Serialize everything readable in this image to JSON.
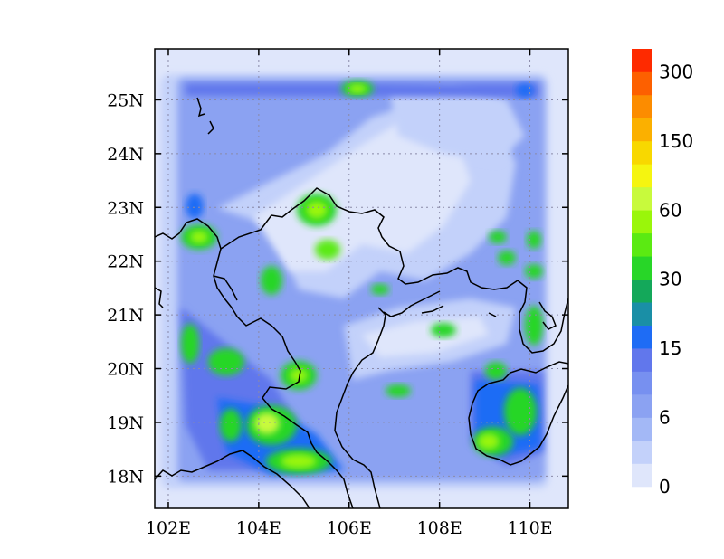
{
  "map": {
    "lon_range": [
      101.7,
      110.85
    ],
    "lat_range": [
      17.4,
      25.95
    ],
    "lon_ticks": [
      {
        "value": 102,
        "label": "102E"
      },
      {
        "value": 104,
        "label": "104E"
      },
      {
        "value": 106,
        "label": "106E"
      },
      {
        "value": 108,
        "label": "108E"
      },
      {
        "value": 110,
        "label": "110E"
      }
    ],
    "lat_ticks": [
      {
        "value": 18,
        "label": "18N"
      },
      {
        "value": 19,
        "label": "19N"
      },
      {
        "value": 20,
        "label": "20N"
      },
      {
        "value": 21,
        "label": "21N"
      },
      {
        "value": 22,
        "label": "22N"
      },
      {
        "value": 23,
        "label": "23N"
      },
      {
        "value": 24,
        "label": "24N"
      },
      {
        "value": 25,
        "label": "25N"
      }
    ],
    "gridlines": true
  },
  "colorbar": {
    "colors": [
      "#dfe6fb",
      "#c3d1fa",
      "#a3b8f6",
      "#8ba2f2",
      "#7790f0",
      "#6177ec",
      "#1e6cf5",
      "#1a8fa6",
      "#14a85a",
      "#28d628",
      "#5bea12",
      "#9af60a",
      "#c8fa3c",
      "#f5f510",
      "#f8d800",
      "#fbb000",
      "#fc8c00",
      "#fd6000",
      "#fe2a00"
    ],
    "labels": [
      {
        "index": 0,
        "text": "0"
      },
      {
        "index": 3,
        "text": "6"
      },
      {
        "index": 6,
        "text": "15"
      },
      {
        "index": 9,
        "text": "30"
      },
      {
        "index": 12,
        "text": "60"
      },
      {
        "index": 15,
        "text": "150"
      },
      {
        "index": 18,
        "text": "300"
      }
    ]
  }
}
